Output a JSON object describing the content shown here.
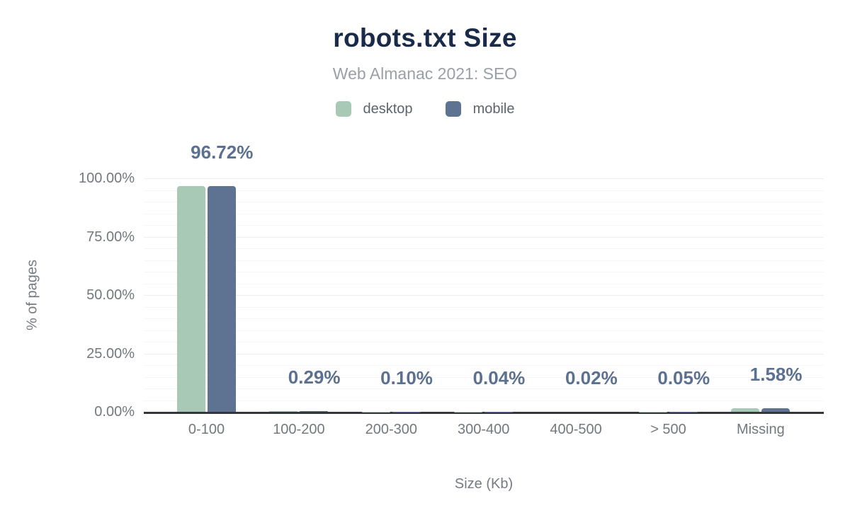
{
  "chart_data": {
    "type": "bar",
    "title": "robots.txt Size",
    "subtitle": "Web Almanac 2021: SEO",
    "xlabel": "Size (Kb)",
    "ylabel": "% of pages",
    "categories": [
      "0-100",
      "100-200",
      "200-300",
      "300-400",
      "400-500",
      "> 500",
      "Missing"
    ],
    "series": [
      {
        "name": "desktop",
        "color": "#a7c9b5",
        "values": [
          96.72,
          0.29,
          0.1,
          0.04,
          0.02,
          0.05,
          1.58
        ]
      },
      {
        "name": "mobile",
        "color": "#5e7292",
        "values": [
          96.72,
          0.29,
          0.1,
          0.04,
          0.02,
          0.05,
          1.58
        ]
      }
    ],
    "data_labels": [
      "96.72%",
      "0.29%",
      "0.10%",
      "0.04%",
      "0.02%",
      "0.05%",
      "1.58%"
    ],
    "yticks": [
      {
        "value": 0,
        "label": "0.00%"
      },
      {
        "value": 25,
        "label": "25.00%"
      },
      {
        "value": 50,
        "label": "50.00%"
      },
      {
        "value": 75,
        "label": "75.00%"
      },
      {
        "value": 100,
        "label": "100.00%"
      }
    ],
    "ylim": [
      0,
      100
    ],
    "grid": {
      "orientation": "horizontal",
      "minor_step_pct": 5,
      "major_step_pct": 25
    },
    "legend_position": "top"
  },
  "colors": {
    "background": "#ffffff",
    "title": "#1a2b4a",
    "subtitle": "#9aa0a6",
    "legend_text": "#5e646d",
    "axis_text": "#74787e",
    "axis_title_text": "#767b82",
    "data_label": "#5c7190",
    "axis_line": "#33373b",
    "grid_major": "#eceef0",
    "grid_minor": "#f5f6f7",
    "desktop": "#a7c9b5",
    "mobile": "#5e7292"
  }
}
